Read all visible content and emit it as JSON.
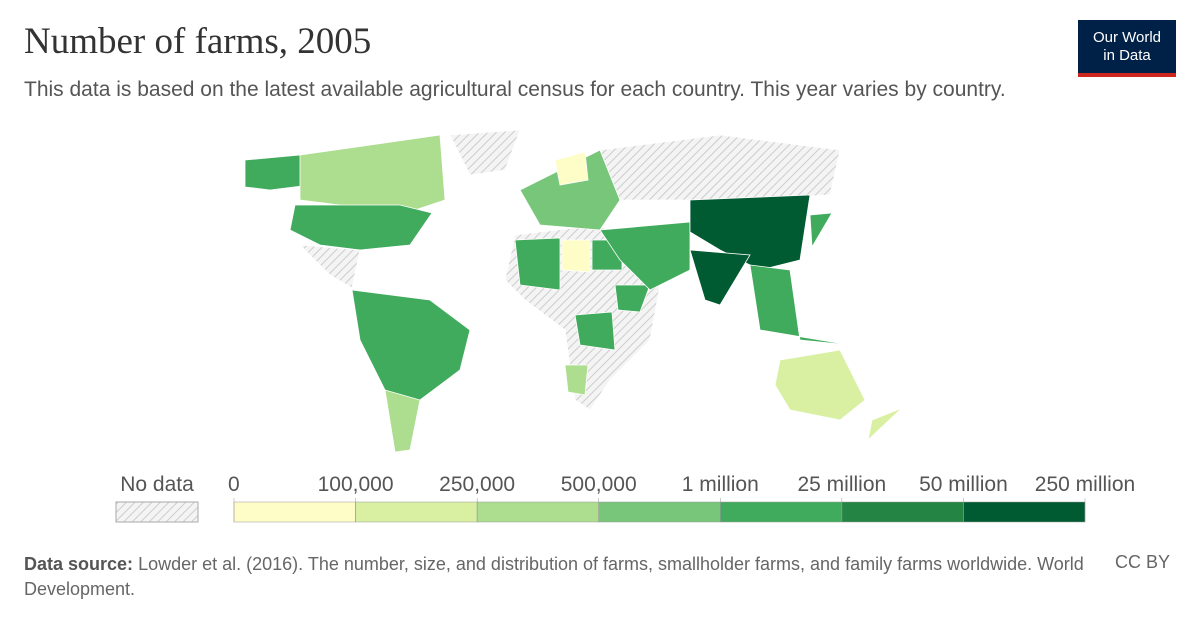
{
  "header": {
    "title": "Number of farms, 2005",
    "subtitle": "This data is based on the latest available agricultural census for each country. This year varies by country."
  },
  "logo": {
    "line1": "Our World",
    "line2": "in Data"
  },
  "legend": {
    "no_data": "No data",
    "bins": [
      0,
      {
        "value": 100000,
        "label": "100,000"
      },
      {
        "value": 250000,
        "label": "250,000"
      },
      {
        "value": 500000,
        "label": "500,000"
      },
      {
        "value": 1000000,
        "label": "1 million"
      },
      {
        "value": 25000000,
        "label": "25 million"
      },
      {
        "value": 50000000,
        "label": "50 million"
      },
      {
        "value": 250000000,
        "label": "250 million"
      }
    ],
    "colors": [
      "#fefdc8",
      "#d9f0a3",
      "#addd8e",
      "#78c679",
      "#41ab5d",
      "#238443",
      "#005a32"
    ]
  },
  "footer": {
    "source_label": "Data source:",
    "source": "Lowder et al. (2016). The number, size, and distribution of farms, smallholder farms, and family farms worldwide. World Development.",
    "license": "CC BY"
  }
}
